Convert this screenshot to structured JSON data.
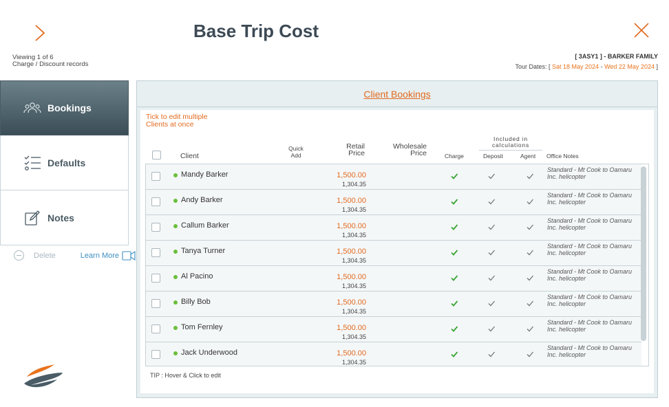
{
  "header": {
    "title": "Base Trip Cost",
    "viewing": "Viewing 1 of 6",
    "records_label": "Charge / Discount records",
    "tour_ref": "[ 3ASY1 ] - BARKER FAMILY",
    "tour_dates_prefix": "Tour Dates: [",
    "tour_start": "Sat 18 May 2024",
    "tour_sep": "-",
    "tour_end": "Wed 22 May 2024",
    "tour_suffix": "]"
  },
  "sidebar": {
    "items": [
      {
        "label": "Bookings",
        "icon": "people-icon",
        "active": true
      },
      {
        "label": "Defaults",
        "icon": "checklist-icon",
        "active": false
      },
      {
        "label": "Notes",
        "icon": "edit-note-icon",
        "active": false
      }
    ],
    "delete_label": "Delete",
    "learn_more_label": "Learn More"
  },
  "panel": {
    "title": "Client Bookings",
    "tick_note_line1": "Tick to edit multiple",
    "tick_note_line2": "Clients at once",
    "columns": {
      "client": "Client",
      "quick_add_line1": "Quick",
      "quick_add_line2": "Add",
      "retail_line1": "Retail",
      "retail_line2": "Price",
      "wholesale_line1": "Wholesale",
      "wholesale_line2": "Price",
      "charge": "Charge",
      "included_line1": "Included in",
      "included_line2": "calculations",
      "deposit": "Deposit",
      "agent": "Agent",
      "office_notes": "Office Notes"
    },
    "rows": [
      {
        "name": "Mandy Barker",
        "retail": "1,500.00",
        "cost": "1,304.35",
        "notes": "Standard - Mt Cook to Oamaru Inc. helicopter"
      },
      {
        "name": "Andy Barker",
        "retail": "1,500.00",
        "cost": "1,304.35",
        "notes": "Standard - Mt Cook to Oamaru Inc. helicopter"
      },
      {
        "name": "Callum Barker",
        "retail": "1,500.00",
        "cost": "1,304.35",
        "notes": "Standard - Mt Cook to Oamaru Inc. helicopter"
      },
      {
        "name": "Tanya Turner",
        "retail": "1,500.00",
        "cost": "1,304.35",
        "notes": "Standard - Mt Cook to Oamaru Inc. helicopter"
      },
      {
        "name": "Al Pacino",
        "retail": "1,500.00",
        "cost": "1,304.35",
        "notes": "Standard - Mt Cook to Oamaru Inc. helicopter"
      },
      {
        "name": "Billy Bob",
        "retail": "1,500.00",
        "cost": "1,304.35",
        "notes": "Standard - Mt Cook to Oamaru Inc. helicopter"
      },
      {
        "name": "Tom Fernley",
        "retail": "1,500.00",
        "cost": "1,304.35",
        "notes": "Standard - Mt Cook to Oamaru Inc. helicopter"
      },
      {
        "name": "Jack Underwood",
        "retail": "1,500.00",
        "cost": "1,304.35",
        "notes": "Standard - Mt Cook to Oamaru Inc. helicopter"
      }
    ],
    "tip": "TIP : Hover & Click to edit"
  },
  "colors": {
    "accent": "#e26a1f",
    "charge_check": "#3aa536",
    "included_check": "#777777",
    "status_dot": "#6bbf3c",
    "sidebar_active": "#4b5f68"
  }
}
